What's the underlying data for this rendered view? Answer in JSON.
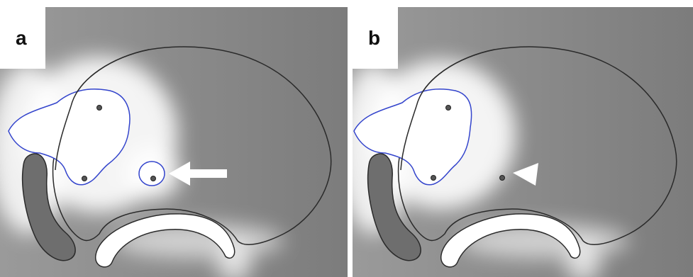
{
  "panels": [
    {
      "label": "a"
    },
    {
      "label": "b"
    }
  ],
  "colors": {
    "background_gray": "#8a8a8a",
    "glow": "#ffffff",
    "outline_dark": "#2a2a2a",
    "outline_blue": "#3344cc",
    "arrow": "#ffffff"
  },
  "annotations": {
    "panel_a_marker": "arrow",
    "panel_b_marker": "arrowhead"
  }
}
